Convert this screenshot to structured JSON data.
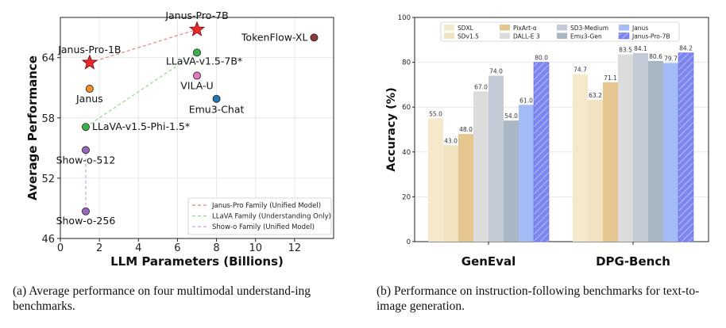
{
  "chart_data": [
    {
      "type": "scatter",
      "xlabel": "LLM Parameters (Billions)",
      "ylabel": "Average Performance",
      "xlim": [
        0,
        14
      ],
      "ylim": [
        46,
        68
      ],
      "x_ticks": [
        "0",
        "2",
        "4",
        "6",
        "8",
        "10",
        "12"
      ],
      "y_ticks": [
        "46",
        "52",
        "58",
        "64"
      ],
      "grid": true,
      "legend_position": "lower-right",
      "points": [
        {
          "label": "Janus-Pro-1B",
          "x": 1.5,
          "y": 63.5,
          "marker": "star",
          "color": "#e8282a"
        },
        {
          "label": "Janus-Pro-7B",
          "x": 7.0,
          "y": 66.8,
          "marker": "star",
          "color": "#e8282a"
        },
        {
          "label": "Janus",
          "x": 1.5,
          "y": 60.9,
          "marker": "circle",
          "color": "#f28e2b"
        },
        {
          "label": "LLaVA-v1.5-7B*",
          "x": 7.0,
          "y": 64.5,
          "marker": "circle",
          "color": "#3cb04a"
        },
        {
          "label": "LLaVA-v1.5-Phi-1.5*",
          "x": 1.3,
          "y": 57.1,
          "marker": "circle",
          "color": "#3cb04a"
        },
        {
          "label": "VILA-U",
          "x": 7.0,
          "y": 62.2,
          "marker": "circle",
          "color": "#e377c2"
        },
        {
          "label": "Emu3-Chat",
          "x": 8.0,
          "y": 59.9,
          "marker": "circle",
          "color": "#1f77b4"
        },
        {
          "label": "TokenFlow-XL",
          "x": 13.0,
          "y": 66.0,
          "marker": "circle",
          "color": "#8c3b3b"
        },
        {
          "label": "Show-o-512",
          "x": 1.3,
          "y": 54.8,
          "marker": "circle",
          "color": "#9467bd"
        },
        {
          "label": "Show-o-256",
          "x": 1.3,
          "y": 48.7,
          "marker": "circle",
          "color": "#9467bd"
        }
      ],
      "lines": [
        {
          "name": "Janus-Pro Family (Unified Model)",
          "color": "#f08080",
          "from": "Janus-Pro-1B",
          "to": "Janus-Pro-7B"
        },
        {
          "name": "LLaVA Family (Understanding Only)",
          "color": "#90d890",
          "from": "LLaVA-v1.5-Phi-1.5*",
          "to": "LLaVA-v1.5-7B*"
        },
        {
          "name": "Show-o Family (Unified Model)",
          "color": "#c8a8e0",
          "from": "Show-o-256",
          "to": "Show-o-512"
        }
      ]
    },
    {
      "type": "bar",
      "ylabel": "Accuracy (%)",
      "ylim": [
        0,
        100
      ],
      "y_ticks": [
        "0",
        "20",
        "40",
        "60",
        "80",
        "100"
      ],
      "grid": true,
      "legend_position": "top-center",
      "categories": [
        "GenEval",
        "DPG-Bench"
      ],
      "series": [
        {
          "name": "SDXL",
          "color": "#f5e9cc",
          "values": [
            55.0,
            74.7
          ]
        },
        {
          "name": "SDv1.5",
          "color": "#f2e3c0",
          "values": [
            43.0,
            63.2
          ]
        },
        {
          "name": "PixArt-α",
          "color": "#e6c690",
          "values": [
            48.0,
            71.1
          ]
        },
        {
          "name": "DALL-E 3",
          "color": "#dcdcdc",
          "values": [
            67.0,
            83.5
          ]
        },
        {
          "name": "SD3-Medium",
          "color": "#c4cbd6",
          "values": [
            74.0,
            84.1
          ]
        },
        {
          "name": "Emu3-Gen",
          "color": "#a9b6c3",
          "values": [
            54.0,
            80.6
          ]
        },
        {
          "name": "Janus",
          "color": "#a4bcf5",
          "values": [
            61.0,
            79.7
          ]
        },
        {
          "name": "Janus-Pro-7B",
          "color": "#7d86f0",
          "hatch": true,
          "values": [
            80.0,
            84.2
          ]
        }
      ],
      "value_labels": [
        [
          "55.0",
          "43.0",
          "48.0",
          "67.0",
          "74.0",
          "54.0",
          "61.0",
          "80.0"
        ],
        [
          "74.7",
          "63.2",
          "71.1",
          "83.5",
          "84.1",
          "80.6",
          "79.7",
          "84.2"
        ]
      ]
    }
  ],
  "captions": {
    "a": "(a)  Average performance on four multimodal understand-ing benchmarks.",
    "b": "(b)  Performance on instruction-following benchmarks for text-to-image generation."
  }
}
